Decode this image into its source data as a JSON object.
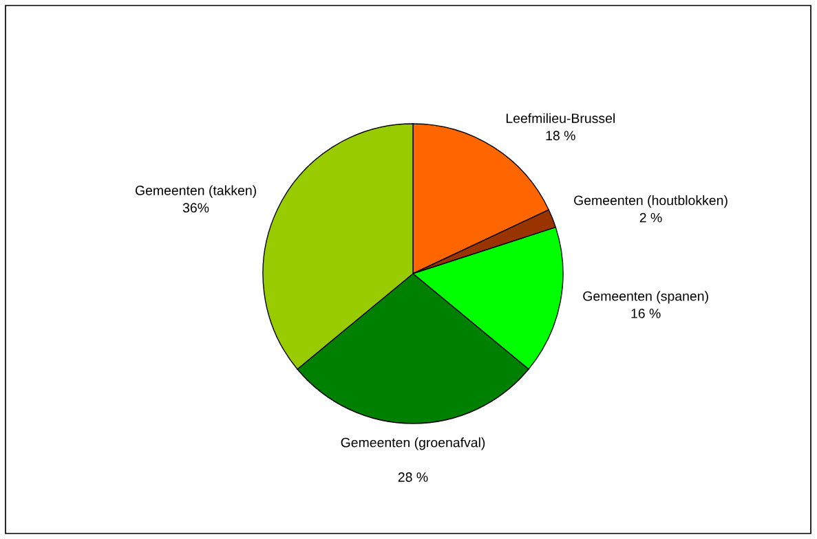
{
  "chart_data": {
    "type": "pie",
    "categories": [
      "Leefmilieu-Brussel",
      "Gemeenten (houtblokken)",
      "Gemeenten (spanen)",
      "Gemeenten (groenafval)",
      "Gemeenten (takken)"
    ],
    "values": [
      18,
      2,
      16,
      28,
      36
    ],
    "value_labels": [
      "18 %",
      "2 %",
      "16 %",
      "\n28 %",
      "36%"
    ],
    "colors": [
      "#ff6600",
      "#993300",
      "#00ff00",
      "#008000",
      "#99cc00"
    ],
    "legend": false
  }
}
